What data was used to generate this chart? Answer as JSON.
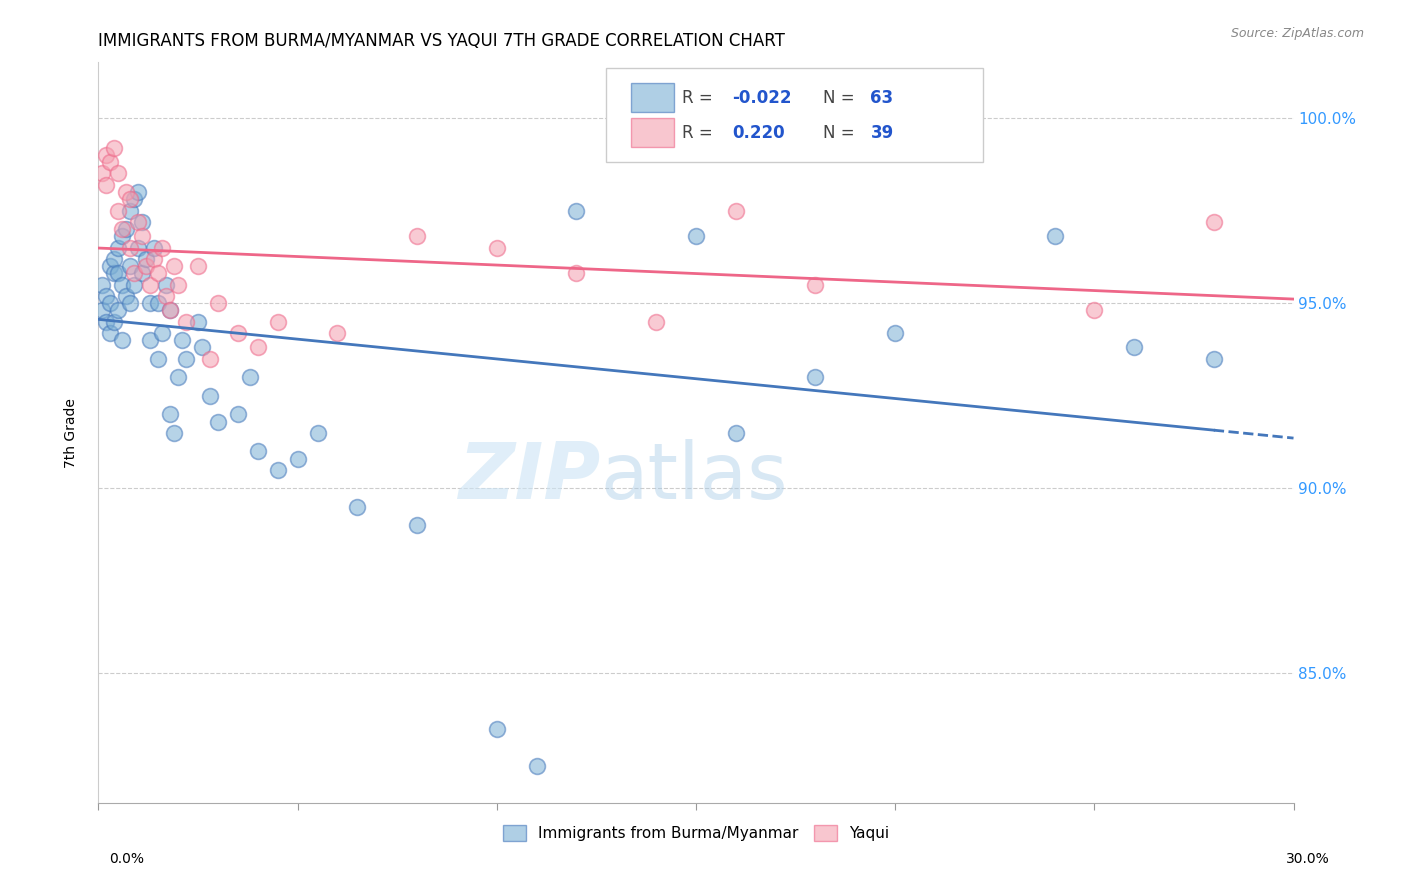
{
  "title": "IMMIGRANTS FROM BURMA/MYANMAR VS YAQUI 7TH GRADE CORRELATION CHART",
  "source": "Source: ZipAtlas.com",
  "ylabel": "7th Grade",
  "xlim": [
    0.0,
    0.3
  ],
  "ylim": [
    81.5,
    101.5
  ],
  "blue_R": -0.022,
  "blue_N": 63,
  "pink_R": 0.22,
  "pink_N": 39,
  "blue_color": "#7BAFD4",
  "pink_color": "#F4A0B0",
  "blue_edge_color": "#4477BB",
  "pink_edge_color": "#EE6688",
  "blue_line_color": "#4477BB",
  "pink_line_color": "#EE6688",
  "legend_label_blue": "Immigrants from Burma/Myanmar",
  "legend_label_pink": "Yaqui",
  "blue_dots_x": [
    0.001,
    0.001,
    0.002,
    0.002,
    0.003,
    0.003,
    0.003,
    0.004,
    0.004,
    0.004,
    0.005,
    0.005,
    0.005,
    0.006,
    0.006,
    0.006,
    0.007,
    0.007,
    0.008,
    0.008,
    0.008,
    0.009,
    0.009,
    0.01,
    0.01,
    0.011,
    0.011,
    0.012,
    0.013,
    0.013,
    0.014,
    0.015,
    0.015,
    0.016,
    0.017,
    0.018,
    0.018,
    0.019,
    0.02,
    0.021,
    0.022,
    0.025,
    0.026,
    0.028,
    0.03,
    0.035,
    0.038,
    0.04,
    0.045,
    0.05,
    0.055,
    0.065,
    0.08,
    0.1,
    0.11,
    0.12,
    0.15,
    0.16,
    0.18,
    0.2,
    0.24,
    0.26,
    0.28
  ],
  "blue_dots_y": [
    95.5,
    94.8,
    95.2,
    94.5,
    96.0,
    95.0,
    94.2,
    95.8,
    94.5,
    96.2,
    96.5,
    95.8,
    94.8,
    96.8,
    95.5,
    94.0,
    97.0,
    95.2,
    97.5,
    96.0,
    95.0,
    97.8,
    95.5,
    98.0,
    96.5,
    97.2,
    95.8,
    96.2,
    95.0,
    94.0,
    96.5,
    93.5,
    95.0,
    94.2,
    95.5,
    92.0,
    94.8,
    91.5,
    93.0,
    94.0,
    93.5,
    94.5,
    93.8,
    92.5,
    91.8,
    92.0,
    93.0,
    91.0,
    90.5,
    90.8,
    91.5,
    89.5,
    89.0,
    83.5,
    82.5,
    97.5,
    96.8,
    91.5,
    93.0,
    94.2,
    96.8,
    93.8,
    93.5
  ],
  "pink_dots_x": [
    0.001,
    0.002,
    0.002,
    0.003,
    0.004,
    0.005,
    0.005,
    0.006,
    0.007,
    0.008,
    0.008,
    0.009,
    0.01,
    0.011,
    0.012,
    0.013,
    0.014,
    0.015,
    0.016,
    0.017,
    0.018,
    0.019,
    0.02,
    0.022,
    0.025,
    0.028,
    0.03,
    0.035,
    0.04,
    0.045,
    0.06,
    0.08,
    0.1,
    0.12,
    0.14,
    0.16,
    0.18,
    0.25,
    0.28
  ],
  "pink_dots_y": [
    98.5,
    99.0,
    98.2,
    98.8,
    99.2,
    98.5,
    97.5,
    97.0,
    98.0,
    96.5,
    97.8,
    95.8,
    97.2,
    96.8,
    96.0,
    95.5,
    96.2,
    95.8,
    96.5,
    95.2,
    94.8,
    96.0,
    95.5,
    94.5,
    96.0,
    93.5,
    95.0,
    94.2,
    93.8,
    94.5,
    94.2,
    96.8,
    96.5,
    95.8,
    94.5,
    97.5,
    95.5,
    94.8,
    97.2
  ],
  "watermark_zip": "ZIP",
  "watermark_atlas": "atlas",
  "title_fontsize": 12,
  "axis_label_fontsize": 10,
  "ytick_values": [
    85.0,
    90.0,
    95.0,
    100.0
  ],
  "ytick_labels": [
    "85.0%",
    "90.0%",
    "95.0%",
    "100.0%"
  ]
}
